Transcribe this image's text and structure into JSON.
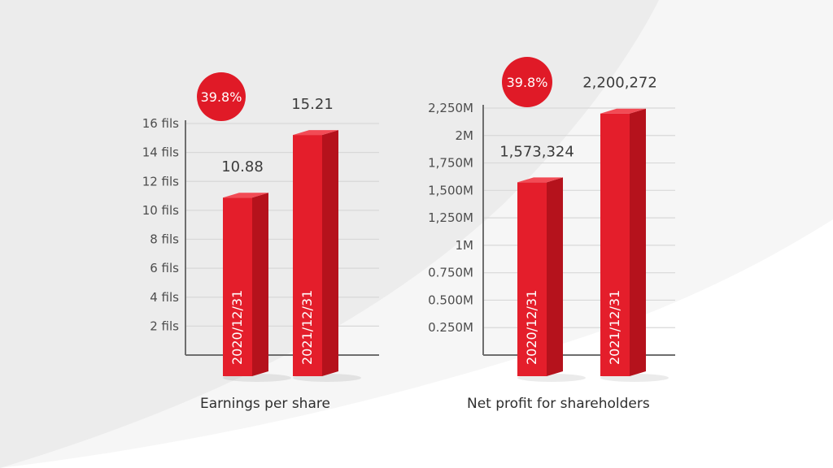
{
  "colors": {
    "bar_front": "#e41e2b",
    "bar_side": "#b5121c",
    "bar_top": "#f24b55",
    "badge": "#e01a27",
    "axis": "#6e6e6e",
    "grid": "#d8d8d8"
  },
  "chart_data": [
    {
      "type": "bar",
      "title": "Earnings per share",
      "categories": [
        "2020/12/31",
        "2021/12/31"
      ],
      "values": [
        10.88,
        15.21
      ],
      "value_labels": [
        "10.88",
        "15.21"
      ],
      "ylim": [
        0,
        16
      ],
      "yticks": [
        2,
        4,
        6,
        8,
        10,
        12,
        14,
        16
      ],
      "ytick_labels": [
        "2 fils",
        "4 fils",
        "6 fils",
        "8 fils",
        "10 fils",
        "12 fils",
        "14 fils",
        "16 fils"
      ],
      "badge": "39.8%",
      "grid": true
    },
    {
      "type": "bar",
      "title": "Net profit for shareholders",
      "categories": [
        "2020/12/31",
        "2021/12/31"
      ],
      "values": [
        1573324,
        2200272
      ],
      "value_labels": [
        "1,573,324",
        "2,200,272"
      ],
      "ylim": [
        0,
        2250000
      ],
      "yticks": [
        250000,
        500000,
        750000,
        1000000,
        1250000,
        1500000,
        1750000,
        2000000,
        2250000
      ],
      "ytick_labels": [
        "0.250M",
        "0.500M",
        "0.750M",
        "1M",
        "1,250M",
        "1,500M",
        "1,750M",
        "2M",
        "2,250M"
      ],
      "badge": "39.8%",
      "grid": true
    }
  ]
}
